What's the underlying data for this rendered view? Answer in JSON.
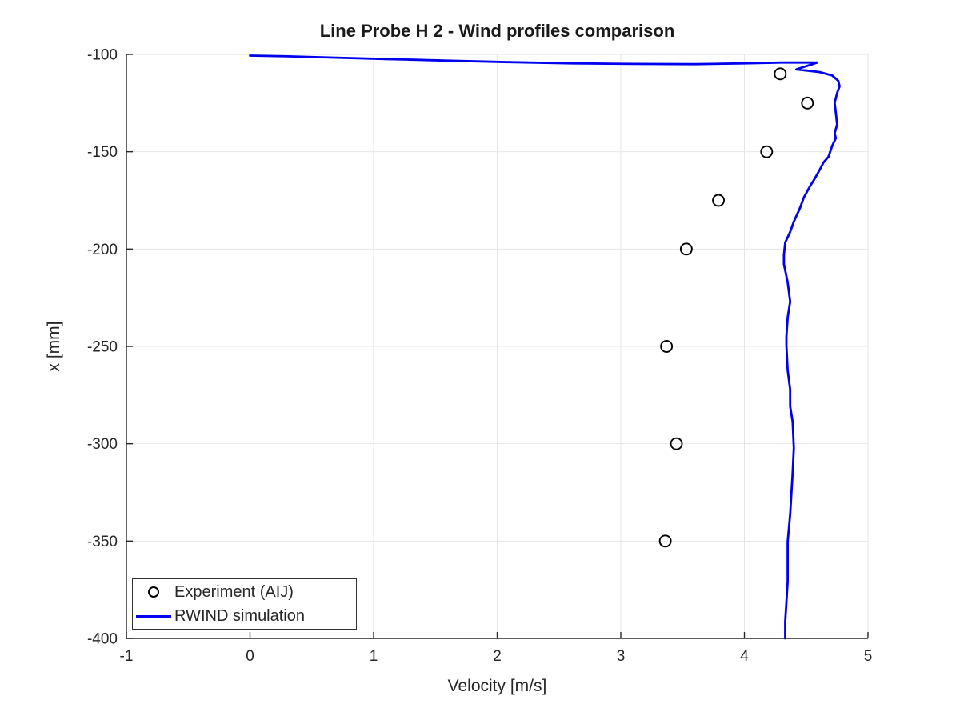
{
  "chart_data": {
    "type": "line",
    "title": "Line Probe H 2 - Wind profiles comparison",
    "xlabel": "Velocity [m/s]",
    "ylabel": "x [mm]",
    "xlim": [
      -1,
      5
    ],
    "ylim": [
      -400,
      -100
    ],
    "xticks": [
      -1,
      0,
      1,
      2,
      3,
      4,
      5
    ],
    "yticks": [
      -100,
      -150,
      -200,
      -250,
      -300,
      -350,
      -400
    ],
    "grid": true,
    "legend_position": "bottom-left",
    "colors": {
      "experiment": "#000000",
      "simulation": "#0000ee",
      "gridline": "#e6e6e6",
      "axis": "#262626",
      "text": "#262626"
    },
    "series": [
      {
        "name": "Experiment (AIJ)",
        "type": "scatter",
        "marker": "circle",
        "color": "#000000",
        "points_format": "[velocity_m_s, x_mm]",
        "points": [
          [
            4.29,
            -110
          ],
          [
            4.51,
            -125
          ],
          [
            4.18,
            -150
          ],
          [
            3.79,
            -175
          ],
          [
            3.53,
            -200
          ],
          [
            3.37,
            -250
          ],
          [
            3.45,
            -300
          ],
          [
            3.36,
            -350
          ]
        ]
      },
      {
        "name": "RWIND simulation",
        "type": "line",
        "color": "#0000ee",
        "points_format": "[velocity_m_s, x_mm]",
        "points": [
          [
            0.0,
            -100.6
          ],
          [
            0.3,
            -101.0
          ],
          [
            0.7,
            -101.7
          ],
          [
            1.1,
            -102.4
          ],
          [
            1.6,
            -103.2
          ],
          [
            2.1,
            -104.0
          ],
          [
            2.6,
            -104.6
          ],
          [
            3.1,
            -104.9
          ],
          [
            3.6,
            -105.0
          ],
          [
            4.0,
            -104.6
          ],
          [
            4.3,
            -104.2
          ],
          [
            4.59,
            -104.2
          ],
          [
            4.42,
            -107.7
          ],
          [
            4.61,
            -109.1
          ],
          [
            4.71,
            -110.8
          ],
          [
            4.76,
            -113.6
          ],
          [
            4.77,
            -116.4
          ],
          [
            4.75,
            -119.8
          ],
          [
            4.74,
            -122.5
          ],
          [
            4.73,
            -124.7
          ],
          [
            4.74,
            -130.0
          ],
          [
            4.75,
            -136.0
          ],
          [
            4.73,
            -140.5
          ],
          [
            4.74,
            -143.0
          ],
          [
            4.71,
            -147.0
          ],
          [
            4.68,
            -152.6
          ],
          [
            4.64,
            -155.5
          ],
          [
            4.61,
            -159.2
          ],
          [
            4.57,
            -163.7
          ],
          [
            4.53,
            -167.8
          ],
          [
            4.48,
            -173.6
          ],
          [
            4.45,
            -178.9
          ],
          [
            4.4,
            -185.9
          ],
          [
            4.37,
            -191.2
          ],
          [
            4.33,
            -196.6
          ],
          [
            4.32,
            -203.0
          ],
          [
            4.32,
            -207.7
          ],
          [
            4.35,
            -217.1
          ],
          [
            4.37,
            -227.0
          ],
          [
            4.35,
            -235.2
          ],
          [
            4.34,
            -245.0
          ],
          [
            4.34,
            -249.6
          ],
          [
            4.35,
            -262.3
          ],
          [
            4.37,
            -272.2
          ],
          [
            4.37,
            -280.8
          ],
          [
            4.39,
            -288.7
          ],
          [
            4.4,
            -302.2
          ],
          [
            4.39,
            -315.0
          ],
          [
            4.37,
            -336.3
          ],
          [
            4.35,
            -350.3
          ],
          [
            4.35,
            -370.8
          ],
          [
            4.33,
            -391.4
          ],
          [
            4.33,
            -400.0
          ]
        ]
      }
    ]
  }
}
